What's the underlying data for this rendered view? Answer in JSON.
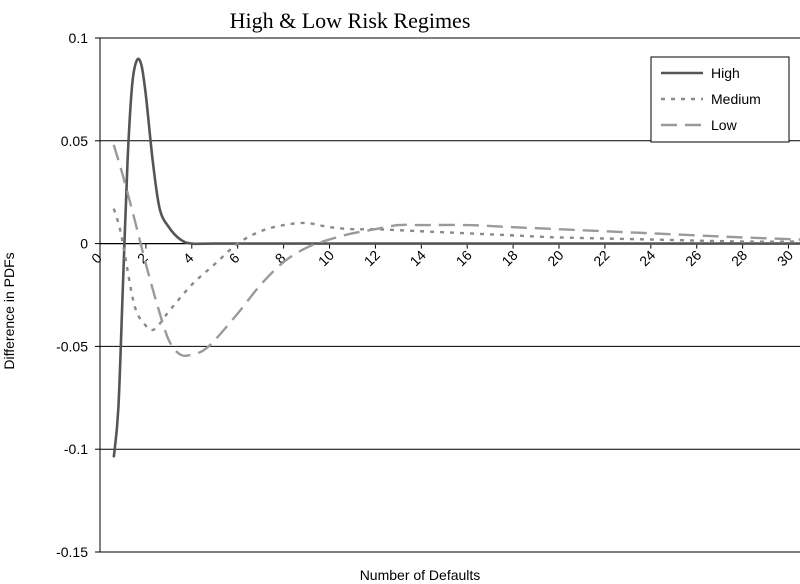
{
  "chart_data": {
    "type": "line",
    "title": "High & Low Risk Regimes",
    "xlabel": "Number of Defaults",
    "ylabel": "Difference in PDFs",
    "xlim": [
      0,
      30.5
    ],
    "ylim": [
      -0.15,
      0.1
    ],
    "x_ticks": [
      "0",
      "2",
      "4",
      "6",
      "8",
      "10",
      "12",
      "14",
      "16",
      "18",
      "20",
      "22",
      "24",
      "26",
      "28",
      "30"
    ],
    "y_ticks": [
      "0.1",
      "0.05",
      "0",
      "-0.05",
      "-0.1",
      "-0.15"
    ],
    "grid": true,
    "legend_position": "top-right",
    "series": [
      {
        "name": "High",
        "color": "#555555",
        "style": "solid",
        "points": [
          [
            0.6,
            -0.104
          ],
          [
            0.8,
            -0.08
          ],
          [
            1.0,
            -0.02
          ],
          [
            1.2,
            0.04
          ],
          [
            1.4,
            0.077
          ],
          [
            1.6,
            0.089
          ],
          [
            1.8,
            0.087
          ],
          [
            2.0,
            0.072
          ],
          [
            2.3,
            0.04
          ],
          [
            2.6,
            0.017
          ],
          [
            3.0,
            0.008
          ],
          [
            3.5,
            0.002
          ],
          [
            4.0,
            0.0
          ],
          [
            5.0,
            0.0
          ],
          [
            10,
            0.0
          ],
          [
            20,
            0.0
          ],
          [
            30.5,
            0.0
          ]
        ]
      },
      {
        "name": "Medium",
        "color": "#8a8a8a",
        "style": "dotted",
        "points": [
          [
            0.6,
            0.017
          ],
          [
            0.8,
            0.01
          ],
          [
            1.0,
            0.0
          ],
          [
            1.5,
            -0.03
          ],
          [
            2.0,
            -0.04
          ],
          [
            2.3,
            -0.042
          ],
          [
            2.6,
            -0.039
          ],
          [
            3.0,
            -0.033
          ],
          [
            4.0,
            -0.02
          ],
          [
            5.0,
            -0.01
          ],
          [
            6.0,
            0.0
          ],
          [
            7.0,
            0.006
          ],
          [
            8.0,
            0.009
          ],
          [
            9.0,
            0.01
          ],
          [
            10.0,
            0.008
          ],
          [
            11.0,
            0.007
          ],
          [
            12.0,
            0.007
          ],
          [
            14.0,
            0.006
          ],
          [
            16.0,
            0.005
          ],
          [
            18.0,
            0.004
          ],
          [
            20.0,
            0.003
          ],
          [
            24.0,
            0.002
          ],
          [
            28.0,
            0.001
          ],
          [
            30.5,
            0.001
          ]
        ]
      },
      {
        "name": "Low",
        "color": "#9a9a9a",
        "style": "dashed",
        "points": [
          [
            0.6,
            0.048
          ],
          [
            1.0,
            0.033
          ],
          [
            1.5,
            0.012
          ],
          [
            2.0,
            -0.01
          ],
          [
            2.5,
            -0.03
          ],
          [
            3.0,
            -0.047
          ],
          [
            3.5,
            -0.054
          ],
          [
            4.0,
            -0.054
          ],
          [
            4.5,
            -0.052
          ],
          [
            5.0,
            -0.047
          ],
          [
            6.0,
            -0.034
          ],
          [
            7.0,
            -0.02
          ],
          [
            8.0,
            -0.009
          ],
          [
            9.0,
            -0.002
          ],
          [
            10.0,
            0.002
          ],
          [
            11.0,
            0.005
          ],
          [
            12.0,
            0.007
          ],
          [
            13.0,
            0.009
          ],
          [
            14.0,
            0.009
          ],
          [
            16.0,
            0.009
          ],
          [
            18.0,
            0.008
          ],
          [
            20.0,
            0.007
          ],
          [
            22.0,
            0.006
          ],
          [
            24.0,
            0.005
          ],
          [
            26.0,
            0.004
          ],
          [
            28.0,
            0.003
          ],
          [
            30.5,
            0.002
          ]
        ]
      }
    ]
  }
}
